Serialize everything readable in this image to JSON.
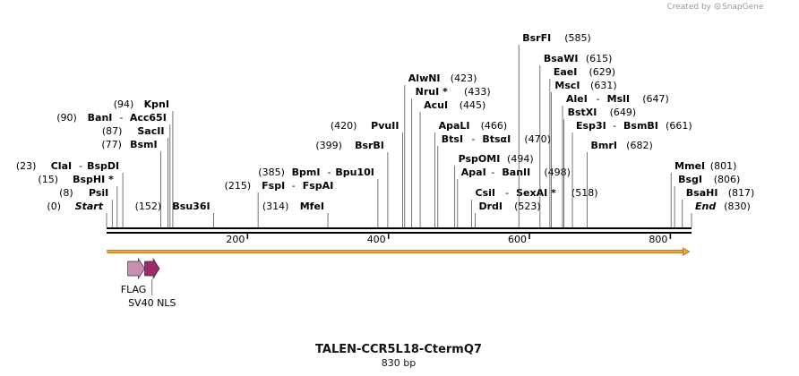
{
  "credit": {
    "created_by": "Created by",
    "brand": "SnapGene"
  },
  "map": {
    "title": "TALEN-CCR5L18-CtermQ7",
    "length_label": "830 bp",
    "length_bp": 830,
    "ticks": [
      200,
      400,
      600,
      800
    ],
    "cut_sites": [
      {
        "pos": 0,
        "pos_label": "(0)",
        "names": [
          "Start"
        ],
        "style": "italic"
      },
      {
        "pos": 8,
        "pos_label": "(8)",
        "names": [
          "PsiI"
        ]
      },
      {
        "pos": 15,
        "pos_label": "(15)",
        "names": [
          "BspHI *"
        ]
      },
      {
        "pos": 23,
        "pos_label": "(23)",
        "names": [
          "ClaI",
          "BspDI"
        ]
      },
      {
        "pos": 77,
        "pos_label": "(77)",
        "names": [
          "BsmI"
        ]
      },
      {
        "pos": 87,
        "pos_label": "(87)",
        "names": [
          "SacII"
        ]
      },
      {
        "pos": 90,
        "pos_label": "(90)",
        "names": [
          "BanI",
          "Acc65I"
        ]
      },
      {
        "pos": 94,
        "pos_label": "(94)",
        "names": [
          "KpnI"
        ]
      },
      {
        "pos": 152,
        "pos_label": "(152)",
        "names": [
          "Bsu36I"
        ]
      },
      {
        "pos": 215,
        "pos_label": "(215)",
        "names": [
          "FspI",
          "FspAI"
        ]
      },
      {
        "pos": 314,
        "pos_label": "(314)",
        "names": [
          "MfeI"
        ]
      },
      {
        "pos": 385,
        "pos_label": "(385)",
        "names": [
          "BpmI",
          "Bpu10I"
        ]
      },
      {
        "pos": 399,
        "pos_label": "(399)",
        "names": [
          "BsrBI"
        ]
      },
      {
        "pos": 420,
        "pos_label": "(420)",
        "names": [
          "PvuII"
        ]
      },
      {
        "pos": 423,
        "pos_label": "(423)",
        "names": [
          "AlwNI"
        ]
      },
      {
        "pos": 433,
        "pos_label": "(433)",
        "names": [
          "NruI *"
        ]
      },
      {
        "pos": 445,
        "pos_label": "(445)",
        "names": [
          "AcuI"
        ]
      },
      {
        "pos": 466,
        "pos_label": "(466)",
        "names": [
          "ApaLI"
        ]
      },
      {
        "pos": 470,
        "pos_label": "(470)",
        "names": [
          "BtsI",
          "BtsαI"
        ]
      },
      {
        "pos": 494,
        "pos_label": "(494)",
        "names": [
          "PspOMI"
        ]
      },
      {
        "pos": 498,
        "pos_label": "(498)",
        "names": [
          "ApaI",
          "BanII"
        ]
      },
      {
        "pos": 518,
        "pos_label": "(518)",
        "names": [
          "CsiI",
          "SexAI *"
        ]
      },
      {
        "pos": 523,
        "pos_label": "(523)",
        "names": [
          "DrdI"
        ]
      },
      {
        "pos": 585,
        "pos_label": "(585)",
        "names": [
          "BsrFI"
        ]
      },
      {
        "pos": 615,
        "pos_label": "(615)",
        "names": [
          "BsaWI"
        ]
      },
      {
        "pos": 629,
        "pos_label": "(629)",
        "names": [
          "EaeI"
        ]
      },
      {
        "pos": 631,
        "pos_label": "(631)",
        "names": [
          "MscI"
        ]
      },
      {
        "pos": 647,
        "pos_label": "(647)",
        "names": [
          "AleI",
          "MslI"
        ]
      },
      {
        "pos": 649,
        "pos_label": "(649)",
        "names": [
          "BstXI"
        ]
      },
      {
        "pos": 661,
        "pos_label": "(661)",
        "names": [
          "Esp3I",
          "BsmBI"
        ]
      },
      {
        "pos": 682,
        "pos_label": "(682)",
        "names": [
          "BmrI"
        ]
      },
      {
        "pos": 801,
        "pos_label": "(801)",
        "names": [
          "MmeI"
        ]
      },
      {
        "pos": 806,
        "pos_label": "(806)",
        "names": [
          "BsgI"
        ]
      },
      {
        "pos": 817,
        "pos_label": "(817)",
        "names": [
          "BsaHI"
        ]
      },
      {
        "pos": 830,
        "pos_label": "(830)",
        "names": [
          "End"
        ],
        "style": "italic"
      }
    ],
    "features": [
      {
        "name": "FLAG",
        "start": 30,
        "end": 54,
        "color": "#c98fb0"
      },
      {
        "name": "SV40 NLS",
        "start": 54,
        "end": 75,
        "color": "#9c2a6a"
      }
    ],
    "orf": {
      "start": 1,
      "end": 827,
      "fill": "#f0a830",
      "stroke": "#a86a10"
    }
  }
}
